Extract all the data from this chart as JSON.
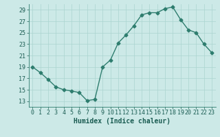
{
  "x": [
    0,
    1,
    2,
    3,
    4,
    5,
    6,
    7,
    8,
    9,
    10,
    11,
    12,
    13,
    14,
    15,
    16,
    17,
    18,
    19,
    20,
    21,
    22,
    23
  ],
  "y": [
    19,
    18,
    16.8,
    15.5,
    15,
    14.8,
    14.5,
    13.1,
    13.3,
    19,
    20.2,
    23.2,
    24.6,
    26.2,
    28.1,
    28.5,
    28.5,
    29.2,
    29.5,
    27.3,
    25.5,
    25.0,
    23.0,
    21.5
  ],
  "line_color": "#2e7d6e",
  "marker": "D",
  "marker_size": 2.5,
  "bg_color": "#cce9e7",
  "grid_color": "#aad4d0",
  "spine_color": "#2e7d6e",
  "xlabel": "Humidex (Indice chaleur)",
  "ylim": [
    12,
    30
  ],
  "xlim": [
    -0.5,
    23.5
  ],
  "yticks": [
    13,
    15,
    17,
    19,
    21,
    23,
    25,
    27,
    29
  ],
  "xticks": [
    0,
    1,
    2,
    3,
    4,
    5,
    6,
    7,
    8,
    9,
    10,
    11,
    12,
    13,
    14,
    15,
    16,
    17,
    18,
    19,
    20,
    21,
    22,
    23
  ],
  "font_color": "#1a5c52",
  "tick_fontsize": 6,
  "xlabel_fontsize": 7,
  "linewidth": 1.0
}
